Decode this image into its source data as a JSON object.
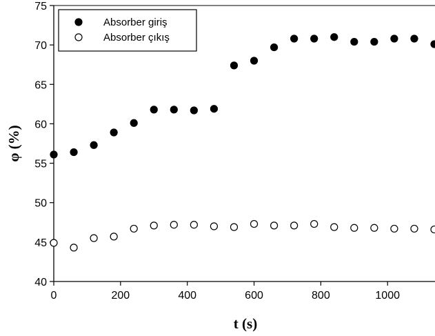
{
  "chart_data": {
    "type": "scatter",
    "title": "",
    "xlabel": "t (s)",
    "ylabel": "φ (%)",
    "xlim": [
      0,
      1140
    ],
    "ylim": [
      40,
      75
    ],
    "xticks": [
      0,
      200,
      400,
      600,
      800,
      1000
    ],
    "yticks": [
      40,
      45,
      50,
      55,
      60,
      65,
      70,
      75
    ],
    "grid": false,
    "legend_position": "top-left",
    "series": [
      {
        "name": "Absorber giriş",
        "marker": "filled-circle",
        "color": "#000000",
        "points": [
          [
            0,
            56.1
          ],
          [
            60,
            56.4
          ],
          [
            120,
            57.3
          ],
          [
            180,
            58.9
          ],
          [
            240,
            60.1
          ],
          [
            300,
            61.8
          ],
          [
            360,
            61.8
          ],
          [
            420,
            61.7
          ],
          [
            480,
            61.9
          ],
          [
            540,
            67.4
          ],
          [
            600,
            68.0
          ],
          [
            660,
            69.7
          ],
          [
            720,
            70.8
          ],
          [
            780,
            70.8
          ],
          [
            840,
            71.0
          ],
          [
            900,
            70.4
          ],
          [
            960,
            70.4
          ],
          [
            1020,
            70.8
          ],
          [
            1080,
            70.8
          ],
          [
            1140,
            70.1
          ]
        ]
      },
      {
        "name": "Absorber çıkış",
        "marker": "open-circle",
        "color": "#000000",
        "points": [
          [
            0,
            44.9
          ],
          [
            60,
            44.3
          ],
          [
            120,
            45.5
          ],
          [
            180,
            45.7
          ],
          [
            240,
            46.7
          ],
          [
            300,
            47.1
          ],
          [
            360,
            47.2
          ],
          [
            420,
            47.2
          ],
          [
            480,
            47.0
          ],
          [
            540,
            46.9
          ],
          [
            600,
            47.3
          ],
          [
            660,
            47.1
          ],
          [
            720,
            47.1
          ],
          [
            780,
            47.3
          ],
          [
            840,
            46.9
          ],
          [
            900,
            46.8
          ],
          [
            960,
            46.8
          ],
          [
            1020,
            46.7
          ],
          [
            1080,
            46.7
          ],
          [
            1140,
            46.6
          ]
        ]
      }
    ]
  }
}
